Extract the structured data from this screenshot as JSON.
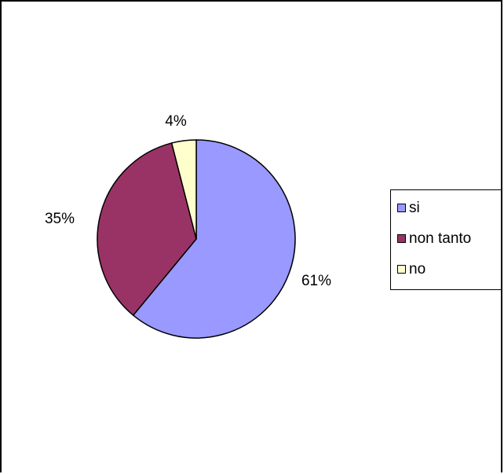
{
  "chart_data": {
    "type": "pie",
    "categories": [
      "si",
      "non tanto",
      "no"
    ],
    "values": [
      61,
      35,
      4
    ],
    "data_labels": [
      "61%",
      "35%",
      "4%"
    ],
    "colors": [
      "#9999ff",
      "#993366",
      "#ffffcc"
    ],
    "legend_position": "right",
    "title": ""
  },
  "legend": {
    "items": [
      "si",
      "non tanto",
      "no"
    ]
  }
}
